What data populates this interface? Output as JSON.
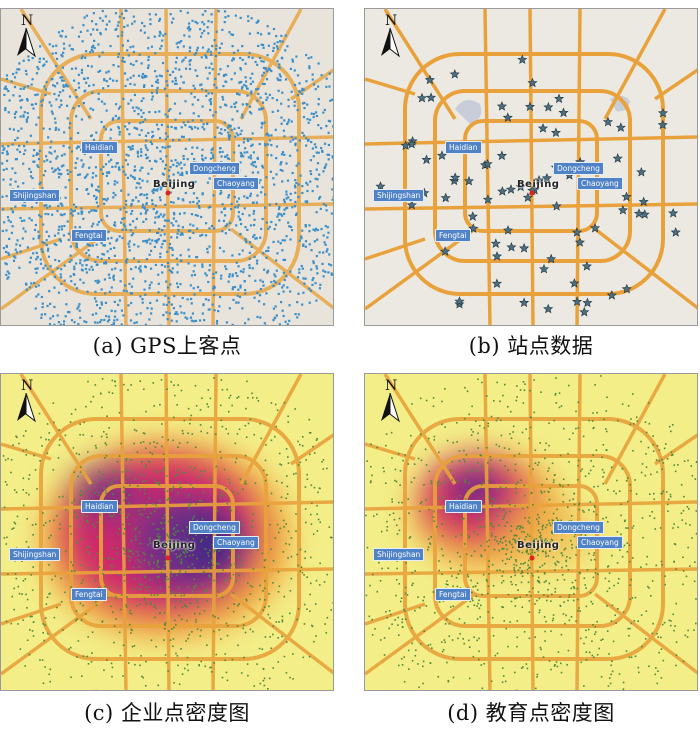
{
  "panels": [
    {
      "id": "a",
      "caption": "(a) GPS上客点",
      "type": "gps-points",
      "background": "#e8e4dc",
      "point_color": "#3b8fc9"
    },
    {
      "id": "b",
      "caption": "(b) 站点数据",
      "type": "station-stars",
      "background": "#ece9e3",
      "point_color": "#4e6f80"
    },
    {
      "id": "c",
      "caption": "(c) 企业点密度图",
      "type": "density",
      "background": "#f3ee88",
      "point_color": "#4f8a3a"
    },
    {
      "id": "d",
      "caption": "(d) 教育点密度图",
      "type": "density",
      "background": "#f3ee88",
      "point_color": "#4f8a3a"
    }
  ],
  "labels": {
    "haidian": "Haidian",
    "dongcheng": "Dongcheng",
    "chaoyang": "Chaoyang",
    "shijingshan": "Shijingshan",
    "fengtai": "Fengtai",
    "beijing": "Beijing"
  },
  "north_arrow": "N",
  "colors": {
    "road": "#e9a23b",
    "label_bg": "#4f82c6",
    "hot": "#c3247a",
    "core": "#5a2f8c"
  },
  "icons": [
    "north-arrow-icon",
    "station-star-icon",
    "city-center-icon"
  ]
}
